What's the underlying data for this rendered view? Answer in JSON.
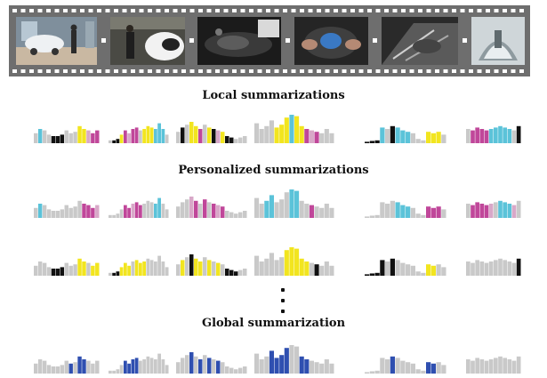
{
  "headings": {
    "local": "Local summarizations",
    "personalized": "Personalized summarizations",
    "global": "Global summarization"
  },
  "filmstrip": {
    "frames": [
      "frame-car-showroom",
      "frame-person-by-car-door",
      "frame-engine-bay",
      "frame-hands-holding-part",
      "frame-wiring-closeup",
      "frame-dome-lamp"
    ]
  },
  "colors": {
    "gray": "#c9c9c9",
    "cyan": "#5bc3d9",
    "yellow": "#f2e51f",
    "magenta": "#c0479a",
    "pink": "#d8a8c8",
    "black": "#111111",
    "blue": "#2f4fb0",
    "film": "#6e6e6e"
  },
  "rows": {
    "local": [
      {
        "h": [
          0.35,
          0.5,
          0.45,
          0.3,
          0.25,
          0.25,
          0.3,
          0.45,
          0.35,
          0.4,
          0.6,
          0.5,
          0.45,
          0.35,
          0.45
        ],
        "c": {
          "1": "cyan",
          "4": "black",
          "5": "black",
          "6": "black",
          "10": "yellow",
          "11": "yellow",
          "12": "pink",
          "13": "magenta",
          "14": "magenta"
        }
      },
      {
        "h": [
          0.1,
          0.1,
          0.15,
          0.3,
          0.45,
          0.35,
          0.5,
          0.55,
          0.45,
          0.5,
          0.6,
          0.55,
          0.5,
          0.7,
          0.5,
          0.3
        ],
        "c": {
          "1": "black",
          "2": "black",
          "3": "yellow",
          "4": "magenta",
          "5": "pink",
          "6": "magenta",
          "7": "magenta",
          "9": "yellow",
          "10": "yellow",
          "11": "yellow",
          "12": "cyan",
          "13": "cyan",
          "14": "cyan"
        }
      },
      {
        "h": [
          0.4,
          0.55,
          0.65,
          0.75,
          0.6,
          0.5,
          0.65,
          0.55,
          0.5,
          0.45,
          0.4,
          0.25,
          0.2,
          0.15,
          0.2,
          0.25
        ],
        "c": {
          "1": "black",
          "3": "yellow",
          "4": "yellow",
          "5": "magenta",
          "7": "yellow",
          "8": "black",
          "9": "pink",
          "10": "yellow",
          "11": "black",
          "12": "black"
        }
      },
      {
        "h": [
          0.7,
          0.5,
          0.6,
          0.8,
          0.55,
          0.65,
          0.9,
          1.0,
          0.95,
          0.6,
          0.5,
          0.45,
          0.4,
          0.35,
          0.5,
          0.35
        ],
        "c": {
          "4": "yellow",
          "5": "yellow",
          "6": "yellow",
          "7": "cyan",
          "8": "yellow",
          "9": "yellow",
          "10": "magenta",
          "11": "pink",
          "12": "magenta"
        }
      },
      {
        "h": [
          0.05,
          0.08,
          0.1,
          0.55,
          0.5,
          0.6,
          0.55,
          0.45,
          0.4,
          0.35,
          0.15,
          0.1,
          0.4,
          0.35,
          0.4,
          0.3
        ],
        "c": {
          "0": "black",
          "1": "black",
          "2": "black",
          "3": "cyan",
          "5": "black",
          "6": "cyan",
          "7": "cyan",
          "8": "cyan",
          "12": "yellow",
          "13": "yellow",
          "14": "yellow"
        }
      },
      {
        "h": [
          0.5,
          0.45,
          0.55,
          0.5,
          0.45,
          0.5,
          0.55,
          0.6,
          0.55,
          0.5,
          0.45,
          0.6
        ],
        "c": {
          "1": "magenta",
          "2": "magenta",
          "3": "magenta",
          "4": "magenta",
          "5": "cyan",
          "6": "cyan",
          "7": "cyan",
          "8": "cyan",
          "9": "cyan",
          "11": "black"
        }
      }
    ],
    "personal_1": [
      {
        "h": [
          0.35,
          0.5,
          0.45,
          0.3,
          0.25,
          0.25,
          0.3,
          0.45,
          0.35,
          0.4,
          0.6,
          0.5,
          0.45,
          0.35,
          0.45
        ],
        "c": {
          "1": "cyan",
          "11": "magenta",
          "12": "magenta",
          "13": "magenta",
          "14": "pink"
        }
      },
      {
        "h": [
          0.1,
          0.1,
          0.15,
          0.3,
          0.45,
          0.35,
          0.5,
          0.55,
          0.45,
          0.5,
          0.6,
          0.55,
          0.5,
          0.7,
          0.5,
          0.3
        ],
        "c": {
          "4": "magenta",
          "5": "magenta",
          "6": "pink",
          "7": "magenta",
          "8": "magenta",
          "12": "cyan",
          "13": "cyan"
        }
      },
      {
        "h": [
          0.4,
          0.55,
          0.65,
          0.75,
          0.6,
          0.5,
          0.65,
          0.55,
          0.5,
          0.45,
          0.4,
          0.25,
          0.2,
          0.15,
          0.2,
          0.25
        ],
        "c": {
          "3": "pink",
          "4": "magenta",
          "6": "magenta",
          "8": "magenta",
          "9": "pink",
          "10": "magenta"
        }
      },
      {
        "h": [
          0.7,
          0.5,
          0.6,
          0.8,
          0.55,
          0.65,
          0.9,
          1.0,
          0.95,
          0.6,
          0.5,
          0.45,
          0.4,
          0.35,
          0.5,
          0.35
        ],
        "c": {
          "2": "cyan",
          "3": "cyan",
          "7": "cyan",
          "8": "cyan",
          "11": "magenta"
        }
      },
      {
        "h": [
          0.05,
          0.08,
          0.1,
          0.55,
          0.5,
          0.6,
          0.55,
          0.45,
          0.4,
          0.35,
          0.15,
          0.1,
          0.4,
          0.35,
          0.4,
          0.3
        ],
        "c": {
          "6": "cyan",
          "7": "cyan",
          "8": "cyan",
          "12": "magenta",
          "13": "magenta",
          "14": "magenta"
        }
      },
      {
        "h": [
          0.5,
          0.45,
          0.55,
          0.5,
          0.45,
          0.5,
          0.55,
          0.6,
          0.55,
          0.5,
          0.45,
          0.6
        ],
        "c": {
          "1": "magenta",
          "2": "magenta",
          "3": "magenta",
          "4": "magenta",
          "5": "pink",
          "7": "cyan",
          "8": "cyan",
          "9": "cyan",
          "10": "pink"
        }
      }
    ],
    "personal_2": [
      {
        "h": [
          0.35,
          0.5,
          0.45,
          0.3,
          0.25,
          0.25,
          0.3,
          0.45,
          0.35,
          0.4,
          0.6,
          0.5,
          0.45,
          0.35,
          0.45
        ],
        "c": {
          "4": "black",
          "5": "black",
          "6": "black",
          "10": "yellow",
          "11": "yellow",
          "13": "yellow",
          "14": "yellow"
        }
      },
      {
        "h": [
          0.1,
          0.1,
          0.15,
          0.3,
          0.45,
          0.35,
          0.5,
          0.55,
          0.45,
          0.5,
          0.6,
          0.55,
          0.5,
          0.7,
          0.5,
          0.3
        ],
        "c": {
          "1": "black",
          "2": "black",
          "3": "yellow",
          "4": "yellow",
          "5": "yellow",
          "7": "yellow",
          "8": "yellow",
          "9": "yellow"
        }
      },
      {
        "h": [
          0.4,
          0.55,
          0.65,
          0.75,
          0.6,
          0.5,
          0.65,
          0.55,
          0.5,
          0.45,
          0.4,
          0.25,
          0.2,
          0.15,
          0.2,
          0.25
        ],
        "c": {
          "1": "yellow",
          "3": "black",
          "4": "yellow",
          "5": "yellow",
          "7": "yellow",
          "9": "yellow",
          "11": "black",
          "12": "black",
          "13": "black"
        }
      },
      {
        "h": [
          0.7,
          0.5,
          0.6,
          0.8,
          0.55,
          0.65,
          0.9,
          1.0,
          0.95,
          0.6,
          0.5,
          0.45,
          0.4,
          0.35,
          0.5,
          0.35
        ],
        "c": {
          "6": "yellow",
          "7": "yellow",
          "8": "yellow",
          "9": "yellow",
          "10": "yellow",
          "12": "black"
        }
      },
      {
        "h": [
          0.05,
          0.08,
          0.1,
          0.55,
          0.5,
          0.6,
          0.55,
          0.45,
          0.4,
          0.35,
          0.15,
          0.1,
          0.4,
          0.35,
          0.4,
          0.3
        ],
        "c": {
          "0": "black",
          "1": "black",
          "2": "black",
          "3": "black",
          "5": "black",
          "12": "yellow",
          "13": "yellow"
        }
      },
      {
        "h": [
          0.5,
          0.45,
          0.55,
          0.5,
          0.45,
          0.5,
          0.55,
          0.6,
          0.55,
          0.5,
          0.45,
          0.6
        ],
        "c": {
          "11": "black"
        }
      }
    ],
    "global": [
      {
        "h": [
          0.35,
          0.5,
          0.45,
          0.3,
          0.25,
          0.25,
          0.3,
          0.45,
          0.35,
          0.4,
          0.6,
          0.5,
          0.45,
          0.35,
          0.45
        ],
        "c": {
          "8": "blue",
          "10": "blue",
          "11": "blue"
        }
      },
      {
        "h": [
          0.1,
          0.1,
          0.15,
          0.3,
          0.45,
          0.35,
          0.5,
          0.55,
          0.45,
          0.5,
          0.6,
          0.55,
          0.5,
          0.7,
          0.5,
          0.3
        ],
        "c": {
          "4": "blue",
          "5": "blue",
          "6": "blue",
          "7": "blue"
        }
      },
      {
        "h": [
          0.4,
          0.55,
          0.65,
          0.75,
          0.6,
          0.5,
          0.65,
          0.55,
          0.5,
          0.45,
          0.4,
          0.25,
          0.2,
          0.15,
          0.2,
          0.25
        ],
        "c": {
          "3": "blue",
          "5": "blue",
          "7": "blue",
          "9": "blue"
        }
      },
      {
        "h": [
          0.7,
          0.5,
          0.6,
          0.8,
          0.55,
          0.65,
          0.9,
          1.0,
          0.95,
          0.6,
          0.5,
          0.45,
          0.4,
          0.35,
          0.5,
          0.35
        ],
        "c": {
          "3": "blue",
          "4": "blue",
          "5": "blue",
          "6": "blue",
          "9": "blue",
          "10": "blue"
        }
      },
      {
        "h": [
          0.05,
          0.08,
          0.1,
          0.55,
          0.5,
          0.6,
          0.55,
          0.45,
          0.4,
          0.35,
          0.15,
          0.1,
          0.4,
          0.35,
          0.4,
          0.3
        ],
        "c": {
          "5": "blue",
          "12": "blue",
          "13": "blue"
        }
      },
      {
        "h": [
          0.5,
          0.45,
          0.55,
          0.5,
          0.45,
          0.5,
          0.55,
          0.6,
          0.55,
          0.5,
          0.45,
          0.6
        ],
        "c": {}
      }
    ]
  }
}
